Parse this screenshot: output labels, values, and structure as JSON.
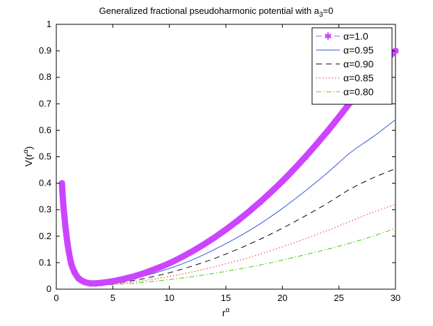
{
  "chart_data": {
    "type": "line",
    "title": "Generalized fractional pseudoharmonic potential with a",
    "title_subscript": "3",
    "title_suffix": "=0",
    "xlabel": "r",
    "xlabel_superscript": "α",
    "ylabel": "V(r",
    "ylabel_superscript": "α",
    "ylabel_suffix": ")",
    "xlim": [
      0,
      30
    ],
    "ylim": [
      0,
      1
    ],
    "x_ticks": [
      "0",
      "5",
      "10",
      "15",
      "20",
      "25",
      "30"
    ],
    "y_ticks": [
      "0",
      "0.1",
      "0.2",
      "0.3",
      "0.4",
      "0.5",
      "0.6",
      "0.7",
      "0.8",
      "0.9",
      "1"
    ],
    "grid": false,
    "legend_position": "top-right",
    "series": [
      {
        "name": "α=1.0",
        "color": "#cc44ff",
        "style": "dashed-star",
        "x": [
          0.5,
          0.6,
          0.8,
          1.0,
          1.3,
          1.6,
          2.0,
          2.5,
          3.0,
          3.5,
          4,
          5,
          6,
          7,
          8,
          10,
          12,
          14,
          16,
          18,
          20,
          22,
          24,
          26,
          28,
          30
        ],
        "y": [
          0.4,
          0.33,
          0.24,
          0.17,
          0.1,
          0.065,
          0.04,
          0.027,
          0.022,
          0.022,
          0.024,
          0.03,
          0.039,
          0.05,
          0.064,
          0.098,
          0.142,
          0.195,
          0.257,
          0.328,
          0.408,
          0.498,
          0.597,
          0.705,
          0.819,
          0.9
        ]
      },
      {
        "name": "α=0.95",
        "color": "#3355dd",
        "style": "solid",
        "x": [
          0.5,
          0.6,
          0.8,
          1.0,
          1.3,
          1.6,
          2.0,
          2.5,
          3.0,
          3.5,
          4,
          5,
          6,
          7,
          8,
          10,
          12,
          14,
          16,
          18,
          20,
          22,
          24,
          26,
          28,
          30
        ],
        "y": [
          0.39,
          0.32,
          0.23,
          0.16,
          0.095,
          0.062,
          0.038,
          0.026,
          0.021,
          0.02,
          0.021,
          0.025,
          0.032,
          0.041,
          0.052,
          0.078,
          0.11,
          0.15,
          0.195,
          0.246,
          0.305,
          0.37,
          0.44,
          0.515,
          0.575,
          0.64
        ]
      },
      {
        "name": "α=0.90",
        "color": "#000000",
        "style": "dashed",
        "x": [
          0.5,
          0.6,
          0.8,
          1.0,
          1.3,
          1.6,
          2.0,
          2.5,
          3.0,
          3.5,
          4,
          5,
          6,
          7,
          8,
          10,
          12,
          14,
          16,
          18,
          20,
          22,
          24,
          26,
          28,
          30
        ],
        "y": [
          0.38,
          0.31,
          0.22,
          0.155,
          0.09,
          0.058,
          0.036,
          0.024,
          0.019,
          0.018,
          0.019,
          0.022,
          0.027,
          0.034,
          0.042,
          0.062,
          0.087,
          0.116,
          0.15,
          0.188,
          0.23,
          0.276,
          0.325,
          0.378,
          0.42,
          0.455
        ]
      },
      {
        "name": "α=0.85",
        "color": "#ee2222",
        "style": "dotted",
        "x": [
          0.5,
          0.6,
          0.8,
          1.0,
          1.3,
          1.6,
          2.0,
          2.5,
          3.0,
          3.5,
          4,
          5,
          6,
          7,
          8,
          10,
          12,
          14,
          16,
          18,
          20,
          22,
          24,
          26,
          28,
          30
        ],
        "y": [
          0.37,
          0.3,
          0.21,
          0.15,
          0.086,
          0.055,
          0.034,
          0.022,
          0.018,
          0.017,
          0.017,
          0.019,
          0.023,
          0.028,
          0.034,
          0.048,
          0.065,
          0.085,
          0.107,
          0.132,
          0.16,
          0.19,
          0.222,
          0.256,
          0.29,
          0.32
        ]
      },
      {
        "name": "α=0.80",
        "color": "#44cc00",
        "style": "dashdot",
        "x": [
          0.5,
          0.6,
          0.8,
          1.0,
          1.3,
          1.6,
          2.0,
          2.5,
          3.0,
          3.5,
          4,
          5,
          6,
          7,
          8,
          10,
          12,
          14,
          16,
          18,
          20,
          22,
          24,
          26,
          28,
          30
        ],
        "y": [
          0.36,
          0.29,
          0.2,
          0.14,
          0.082,
          0.052,
          0.032,
          0.021,
          0.017,
          0.016,
          0.016,
          0.017,
          0.02,
          0.023,
          0.027,
          0.036,
          0.047,
          0.06,
          0.075,
          0.091,
          0.11,
          0.13,
          0.151,
          0.174,
          0.2,
          0.23
        ]
      }
    ]
  }
}
